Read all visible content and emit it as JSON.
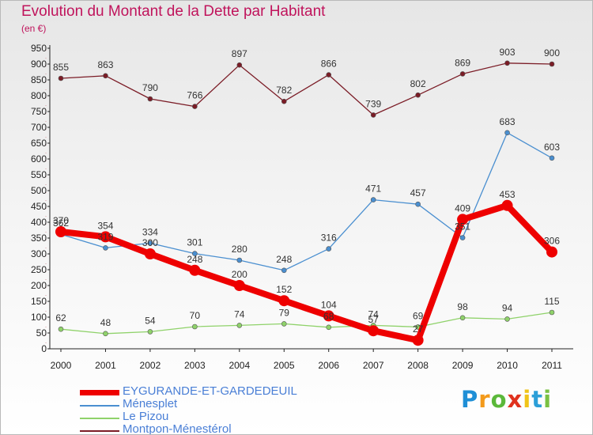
{
  "title": "Evolution du Montant de la Dette par Habitant",
  "subtitle": "(en €)",
  "logo": "Proxiti",
  "chart_data": {
    "type": "line",
    "title": "Evolution du Montant de la Dette par Habitant",
    "subtitle": "(en €)",
    "xlabel": "",
    "ylabel": "",
    "x": [
      "2000",
      "2001",
      "2002",
      "2003",
      "2004",
      "2005",
      "2006",
      "2007",
      "2008",
      "2009",
      "2010",
      "2011"
    ],
    "ylim": [
      0,
      950
    ],
    "yticks": [
      0,
      50,
      100,
      150,
      200,
      250,
      300,
      350,
      400,
      450,
      500,
      550,
      600,
      650,
      700,
      750,
      800,
      850,
      900,
      950
    ],
    "grid": false,
    "legend_position": "bottom-left",
    "series": [
      {
        "name": "Montpon-Ménestérol",
        "color": "#7b1c26",
        "values": [
          855,
          863,
          790,
          766,
          897,
          782,
          866,
          739,
          802,
          869,
          903,
          900
        ]
      },
      {
        "name": "Ménesplet",
        "color": "#4a8fd0",
        "values": [
          362,
          319,
          334,
          301,
          280,
          248,
          316,
          471,
          457,
          351,
          683,
          603
        ]
      },
      {
        "name": "Le Pizou",
        "color": "#8fd26a",
        "values": [
          62,
          48,
          54,
          70,
          74,
          79,
          68,
          74,
          69,
          98,
          94,
          115
        ]
      },
      {
        "name": "EYGURANDE-ET-GARDEDEUIL",
        "color": "#ee0000",
        "values": [
          370,
          354,
          300,
          248,
          200,
          152,
          104,
          57,
          27,
          409,
          453,
          306
        ]
      }
    ]
  },
  "legend": [
    {
      "label": "EYGURANDE-ET-GARDEDEUIL",
      "color": "#ee0000"
    },
    {
      "label": "Ménesplet",
      "color": "#4a8fd0"
    },
    {
      "label": "Le Pizou",
      "color": "#8fd26a"
    },
    {
      "label": "Montpon-Ménestérol",
      "color": "#7b1c26"
    }
  ]
}
